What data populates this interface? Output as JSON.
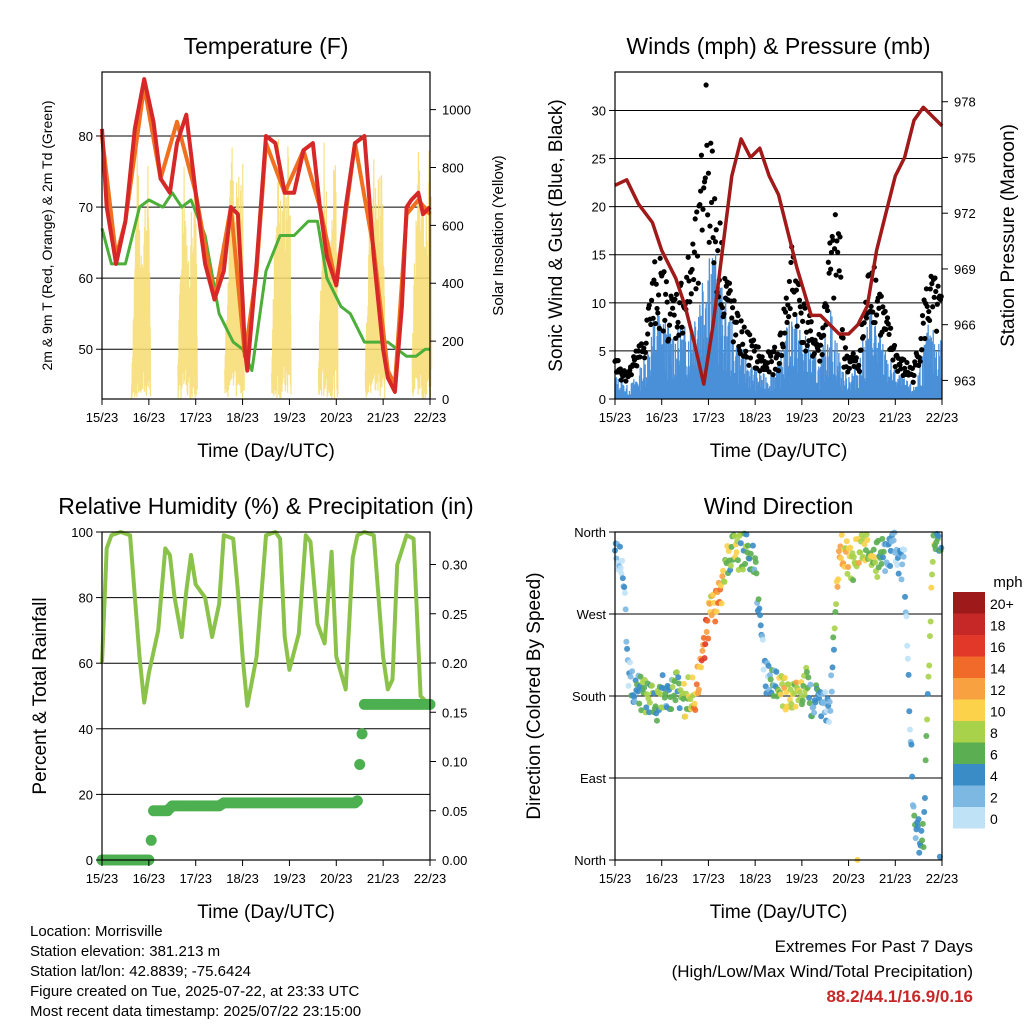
{
  "charts": {
    "temperature": {
      "title": "Temperature (F)",
      "xlabel": "Time (Day/UTC)",
      "ylabel_left": "2m & 9m T (Red, Orange) & 2m Td (Green)",
      "ylabel_right": "Solar Insolation (Yellow)"
    },
    "winds": {
      "title": "Winds (mph) & Pressure (mb)",
      "xlabel": "Time (Day/UTC)",
      "ylabel_left": "Sonic Wind & Gust (Blue, Black)",
      "ylabel_right": "Station Pressure (Maroon)"
    },
    "humidity": {
      "title": "Relative Humidity (%) & Precipitation (in)",
      "xlabel": "Time (Day/UTC)",
      "ylabel_left": "Percent & Total Rainfall"
    },
    "direction": {
      "title": "Wind Direction",
      "xlabel": "Time (Day/UTC)",
      "ylabel_left": "Direction (Colored By Speed)",
      "legend_title": "mph"
    }
  },
  "info": {
    "location": "Location: Morrisville",
    "elevation": "Station elevation: 381.213 m",
    "latlon": "Station lat/lon: 42.8839; -75.6424",
    "created": "Figure created on Tue, 2025-07-22, at 23:33 UTC",
    "recent": "Most recent data timestamp: 2025/07/22 23:15:00"
  },
  "extremes": {
    "line1": "Extremes For Past 7 Days",
    "line2": "(High/Low/Max Wind/Total Precipitation)",
    "values": "88.2/44.1/16.9/0.16",
    "values_color": "#c62828"
  },
  "chart_data": [
    {
      "type": "line",
      "title": "Temperature (F)",
      "xlabel": "Time (Day/UTC)",
      "ylabel": "2m & 9m T (Red, Orange) & 2m Td (Green)",
      "ylabel_right": "Solar Insolation (Yellow)",
      "x_ticks": [
        "15/23",
        "16/23",
        "17/23",
        "18/23",
        "19/23",
        "20/23",
        "21/23",
        "22/23"
      ],
      "xlim": [
        0,
        7
      ],
      "ylim": [
        43,
        89
      ],
      "y_ticks": [
        50,
        60,
        70,
        80
      ],
      "ylim_right": [
        0,
        1130
      ],
      "y_ticks_right": [
        0,
        200,
        400,
        600,
        800,
        1000
      ],
      "grid": true,
      "series": [
        {
          "name": "2m T",
          "color": "#d62828",
          "axis": "left",
          "x": [
            0,
            0.1,
            0.3,
            0.5,
            0.7,
            0.9,
            1.1,
            1.25,
            1.45,
            1.6,
            1.8,
            2.0,
            2.2,
            2.4,
            2.6,
            2.75,
            2.9,
            3.0,
            3.05,
            3.1,
            3.3,
            3.5,
            3.7,
            3.9,
            4.1,
            4.3,
            4.5,
            4.65,
            4.8,
            5.0,
            5.2,
            5.4,
            5.6,
            5.8,
            6.0,
            6.1,
            6.25,
            6.4,
            6.5,
            6.6,
            6.75,
            6.85,
            7.0
          ],
          "y": [
            81,
            70,
            62,
            68,
            81,
            88,
            82,
            74,
            72,
            79,
            83,
            72,
            62,
            57,
            61,
            70,
            69,
            57,
            50,
            47,
            62,
            80,
            79,
            72,
            72,
            78,
            79,
            70,
            63,
            59,
            70,
            79,
            80,
            63,
            50,
            46,
            44,
            56,
            70,
            71,
            72,
            69,
            70
          ]
        },
        {
          "name": "9m T",
          "color": "#f07020",
          "axis": "left",
          "x": [
            0,
            0.3,
            0.5,
            0.9,
            1.25,
            1.6,
            2.0,
            2.4,
            2.75,
            3.05,
            3.3,
            3.5,
            3.9,
            4.3,
            4.65,
            5.0,
            5.4,
            5.8,
            6.1,
            6.25,
            6.5,
            6.75,
            7.0
          ],
          "y": [
            80,
            63,
            68,
            87,
            74,
            82,
            72,
            57,
            70,
            49,
            61,
            79,
            72,
            78,
            70,
            59,
            79,
            64,
            47,
            45,
            69,
            71,
            69
          ]
        },
        {
          "name": "2m Td",
          "color": "#4caf39",
          "axis": "left",
          "x": [
            0,
            0.2,
            0.5,
            0.8,
            1.0,
            1.3,
            1.5,
            1.7,
            1.9,
            2.2,
            2.5,
            2.8,
            3.0,
            3.2,
            3.5,
            3.8,
            4.1,
            4.4,
            4.6,
            4.8,
            5.1,
            5.3,
            5.6,
            5.9,
            6.1,
            6.3,
            6.5,
            6.7,
            6.9,
            7.0
          ],
          "y": [
            67,
            62,
            62,
            70,
            71,
            70,
            72,
            70,
            71,
            66,
            55,
            51,
            50,
            47,
            61,
            66,
            66,
            68,
            68,
            60,
            56,
            55,
            51,
            51,
            51,
            50,
            49,
            49,
            50,
            50
          ]
        },
        {
          "name": "Solar Insolation",
          "color": "#f7dc6f",
          "axis": "right",
          "x": [
            0.62,
            0.75,
            0.82,
            1.0,
            1.05,
            1.6,
            1.75,
            1.82,
            2.0,
            2.05,
            2.6,
            2.75,
            2.82,
            3.0,
            3.05,
            3.6,
            3.75,
            3.82,
            4.0,
            4.05,
            4.6,
            4.75,
            4.82,
            5.0,
            5.05,
            5.6,
            5.75,
            5.82,
            6.0,
            6.05,
            6.6,
            6.75,
            6.82,
            7.0
          ],
          "y": [
            0,
            900,
            600,
            850,
            0,
            0,
            1000,
            500,
            900,
            0,
            0,
            1030,
            700,
            900,
            0,
            0,
            1000,
            700,
            950,
            0,
            0,
            1000,
            600,
            900,
            0,
            0,
            1050,
            800,
            900,
            0,
            0,
            1100,
            700,
            900
          ]
        }
      ]
    },
    {
      "type": "scatter",
      "title": "Winds (mph) & Pressure (mb)",
      "xlabel": "Time (Day/UTC)",
      "ylabel": "Sonic Wind & Gust (Blue, Black)",
      "ylabel_right": "Station Pressure (Maroon)",
      "x_ticks": [
        "15/23",
        "16/23",
        "17/23",
        "18/23",
        "19/23",
        "20/23",
        "21/23",
        "22/23"
      ],
      "xlim": [
        0,
        7
      ],
      "ylim": [
        0,
        34
      ],
      "y_ticks": [
        0,
        5,
        10,
        15,
        20,
        25,
        30
      ],
      "ylim_right": [
        962,
        979.6
      ],
      "y_ticks_right": [
        963,
        966,
        969,
        972,
        975,
        978
      ],
      "grid": true,
      "series": [
        {
          "name": "Sonic Wind",
          "color": "#4a90d9",
          "axis": "left",
          "x": [
            0,
            0.3,
            0.6,
            0.9,
            1.2,
            1.5,
            1.8,
            2.0,
            2.3,
            2.6,
            2.9,
            3.2,
            3.5,
            3.8,
            4.1,
            4.4,
            4.6,
            4.9,
            5.2,
            5.5,
            5.8,
            6.1,
            6.4,
            6.7,
            7.0
          ],
          "y": [
            2,
            1,
            3,
            8,
            6,
            6,
            10,
            15,
            9,
            5,
            3,
            2,
            3,
            8,
            5,
            3,
            8,
            2,
            3,
            8,
            4,
            2,
            1,
            6,
            5
          ]
        },
        {
          "name": "Gust",
          "color": "#000000",
          "axis": "left",
          "x": [
            0,
            0.3,
            0.6,
            0.9,
            1.2,
            1.5,
            1.8,
            1.95,
            2.1,
            2.3,
            2.6,
            2.9,
            3.2,
            3.5,
            3.8,
            4.1,
            4.4,
            4.6,
            4.8,
            4.9,
            5.2,
            5.5,
            5.8,
            6.1,
            6.4,
            6.7,
            7.0
          ],
          "y": [
            4,
            3,
            6,
            14,
            10,
            12,
            18,
            32,
            22,
            15,
            8,
            6,
            4,
            5,
            15,
            8,
            6,
            15,
            18,
            5,
            4,
            15,
            8,
            4,
            3,
            12,
            10
          ]
        },
        {
          "name": "Station Pressure",
          "color": "#a11a1a",
          "axis": "right",
          "x": [
            0,
            0.25,
            0.5,
            0.8,
            1.0,
            1.3,
            1.5,
            1.7,
            1.9,
            2.1,
            2.3,
            2.5,
            2.7,
            2.9,
            3.1,
            3.3,
            3.5,
            3.7,
            3.9,
            4.2,
            4.4,
            4.6,
            4.8,
            5.0,
            5.2,
            5.4,
            5.6,
            5.8,
            6.0,
            6.2,
            6.4,
            6.6,
            6.8,
            7.0
          ],
          "y": [
            973.5,
            973.8,
            972.5,
            971.5,
            970,
            968.5,
            967,
            965,
            962.8,
            966,
            970,
            974,
            976,
            975,
            975.5,
            974,
            973,
            971,
            969,
            966.5,
            966.5,
            966,
            965.5,
            965.5,
            966,
            967,
            970,
            972,
            974,
            975,
            977,
            977.7,
            977.2,
            976.7
          ]
        }
      ]
    },
    {
      "type": "line",
      "title": "Relative Humidity (%) & Precipitation (in)",
      "xlabel": "Time (Day/UTC)",
      "ylabel": "Percent & Total Rainfall",
      "x_ticks": [
        "15/23",
        "16/23",
        "17/23",
        "18/23",
        "19/23",
        "20/23",
        "21/23",
        "22/23"
      ],
      "xlim": [
        0,
        7
      ],
      "ylim": [
        0,
        100
      ],
      "y_ticks": [
        0,
        20,
        40,
        60,
        80,
        100
      ],
      "ylim_right": [
        0,
        0.333
      ],
      "y_ticks_right": [
        "0.00",
        "0.05",
        "0.10",
        "0.15",
        "0.20",
        "0.25",
        "0.30"
      ],
      "grid": true,
      "series": [
        {
          "name": "Relative Humidity",
          "color": "#8bc34a",
          "axis": "left",
          "x": [
            0,
            0.1,
            0.2,
            0.4,
            0.6,
            0.8,
            0.9,
            1.0,
            1.2,
            1.35,
            1.45,
            1.55,
            1.7,
            1.8,
            1.9,
            2.0,
            2.2,
            2.35,
            2.5,
            2.6,
            2.8,
            2.9,
            3.0,
            3.1,
            3.3,
            3.5,
            3.7,
            3.8,
            3.9,
            4.0,
            4.2,
            4.35,
            4.45,
            4.6,
            4.75,
            4.9,
            5.0,
            5.2,
            5.35,
            5.45,
            5.6,
            5.8,
            6.0,
            6.1,
            6.2,
            6.3,
            6.5,
            6.65,
            6.8,
            7.0
          ],
          "y": [
            60,
            95,
            99,
            100,
            99,
            62,
            48,
            57,
            70,
            95,
            93,
            80,
            68,
            82,
            93,
            84,
            80,
            68,
            78,
            99,
            98,
            82,
            62,
            47,
            62,
            99,
            100,
            98,
            68,
            58,
            69,
            99,
            97,
            72,
            66,
            94,
            62,
            52,
            92,
            99,
            100,
            99,
            62,
            52,
            55,
            90,
            99,
            98,
            50,
            47
          ]
        },
        {
          "name": "Total Rainfall",
          "color": "#4caf50",
          "axis": "right",
          "x": [
            0,
            1.0,
            1.05,
            1.1,
            1.2,
            1.3,
            1.4,
            1.5,
            1.7,
            2.0,
            2.5,
            2.6,
            3.0,
            4.0,
            5.0,
            5.2,
            5.4,
            5.45,
            5.5,
            5.55,
            5.6,
            6.0,
            7.0
          ],
          "y": [
            0,
            0,
            0.02,
            0.05,
            0.05,
            0.05,
            0.05,
            0.055,
            0.055,
            0.055,
            0.055,
            0.058,
            0.058,
            0.058,
            0.058,
            0.058,
            0.058,
            0.06,
            0.097,
            0.128,
            0.158,
            0.158,
            0.158
          ]
        }
      ]
    },
    {
      "type": "scatter",
      "title": "Wind Direction",
      "xlabel": "Time (Day/UTC)",
      "ylabel": "Direction (Colored By Speed)",
      "x_ticks": [
        "15/23",
        "16/23",
        "17/23",
        "18/23",
        "19/23",
        "20/23",
        "21/23",
        "22/23"
      ],
      "xlim": [
        0,
        7
      ],
      "y_ticks": [
        "North",
        "East",
        "South",
        "West",
        "North"
      ],
      "grid": true,
      "legend": {
        "title": "mph",
        "position": "right",
        "labels": [
          "20+",
          "18",
          "16",
          "14",
          "12",
          "10",
          "8",
          "6",
          "4",
          "2",
          "0"
        ],
        "colors": [
          "#9e1a1a",
          "#c62828",
          "#e2382a",
          "#f26a2a",
          "#f8a141",
          "#fcd24a",
          "#a8d24a",
          "#5cae52",
          "#3a8cc6",
          "#7db8e2",
          "#bfe2f7"
        ]
      },
      "series": [
        {
          "name": "Wind Direction",
          "x": [
            0,
            0.1,
            0.2,
            0.3,
            0.5,
            0.6,
            0.7,
            0.9,
            1.0,
            1.1,
            1.3,
            1.4,
            1.5,
            1.6,
            1.7,
            1.8,
            1.9,
            1.95,
            2.0,
            2.1,
            2.2,
            2.3,
            2.4,
            2.5,
            2.6,
            2.8,
            3.0,
            3.2,
            3.4,
            3.6,
            3.8,
            3.9,
            4.1,
            4.2,
            4.4,
            4.6,
            4.8,
            5.0,
            5.1,
            5.2,
            5.4,
            5.5,
            5.6,
            5.8,
            6.0,
            6.2,
            6.4,
            6.6,
            6.8,
            7.0
          ],
          "y": [
            345,
            330,
            300,
            200,
            185,
            180,
            175,
            170,
            185,
            180,
            190,
            175,
            175,
            185,
            180,
            200,
            230,
            250,
            265,
            275,
            285,
            300,
            330,
            340,
            335,
            340,
            330,
            200,
            190,
            185,
            180,
            185,
            195,
            175,
            170,
            165,
            340,
            330,
            320,
            345,
            345,
            340,
            330,
            335,
            340,
            320,
            30,
            20,
            345,
            350
          ],
          "speed": [
            1,
            1,
            2,
            3,
            4,
            6,
            6,
            6,
            5,
            4,
            6,
            6,
            8,
            8,
            12,
            12,
            14,
            16,
            12,
            10,
            14,
            10,
            8,
            6,
            8,
            6,
            4,
            2,
            4,
            10,
            8,
            10,
            6,
            4,
            4,
            2,
            12,
            10,
            6,
            10,
            8,
            8,
            6,
            4,
            2,
            2,
            4,
            6,
            8,
            4
          ]
        }
      ]
    }
  ]
}
